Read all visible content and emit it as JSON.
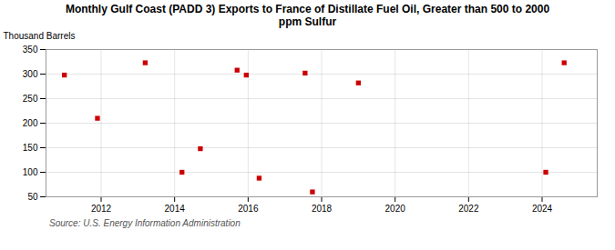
{
  "chart_data": {
    "type": "scatter",
    "title": "Monthly Gulf Coast (PADD 3) Exports to France of Distillate Fuel Oil, Greater than 500 to 2000\nppm Sulfur",
    "ylabel": "Thousand Barrels",
    "annotation": "Source: U.S. Energy Information Administration",
    "x": [
      2011.0,
      2011.9,
      2013.2,
      2014.2,
      2014.7,
      2015.7,
      2015.95,
      2016.3,
      2017.55,
      2017.75,
      2019.0,
      2024.1,
      2024.6
    ],
    "values": [
      298,
      210,
      323,
      100,
      148,
      308,
      298,
      88,
      302,
      60,
      282,
      100,
      323
    ],
    "color": "#cc0000",
    "marker": "square",
    "xlim": [
      2010.5,
      2025.5
    ],
    "xticks": [
      2012,
      2014,
      2016,
      2018,
      2020,
      2022,
      2024
    ],
    "ylim": [
      50,
      350
    ],
    "yticks": [
      50,
      100,
      150,
      200,
      250,
      300,
      350
    ],
    "grid": true
  }
}
